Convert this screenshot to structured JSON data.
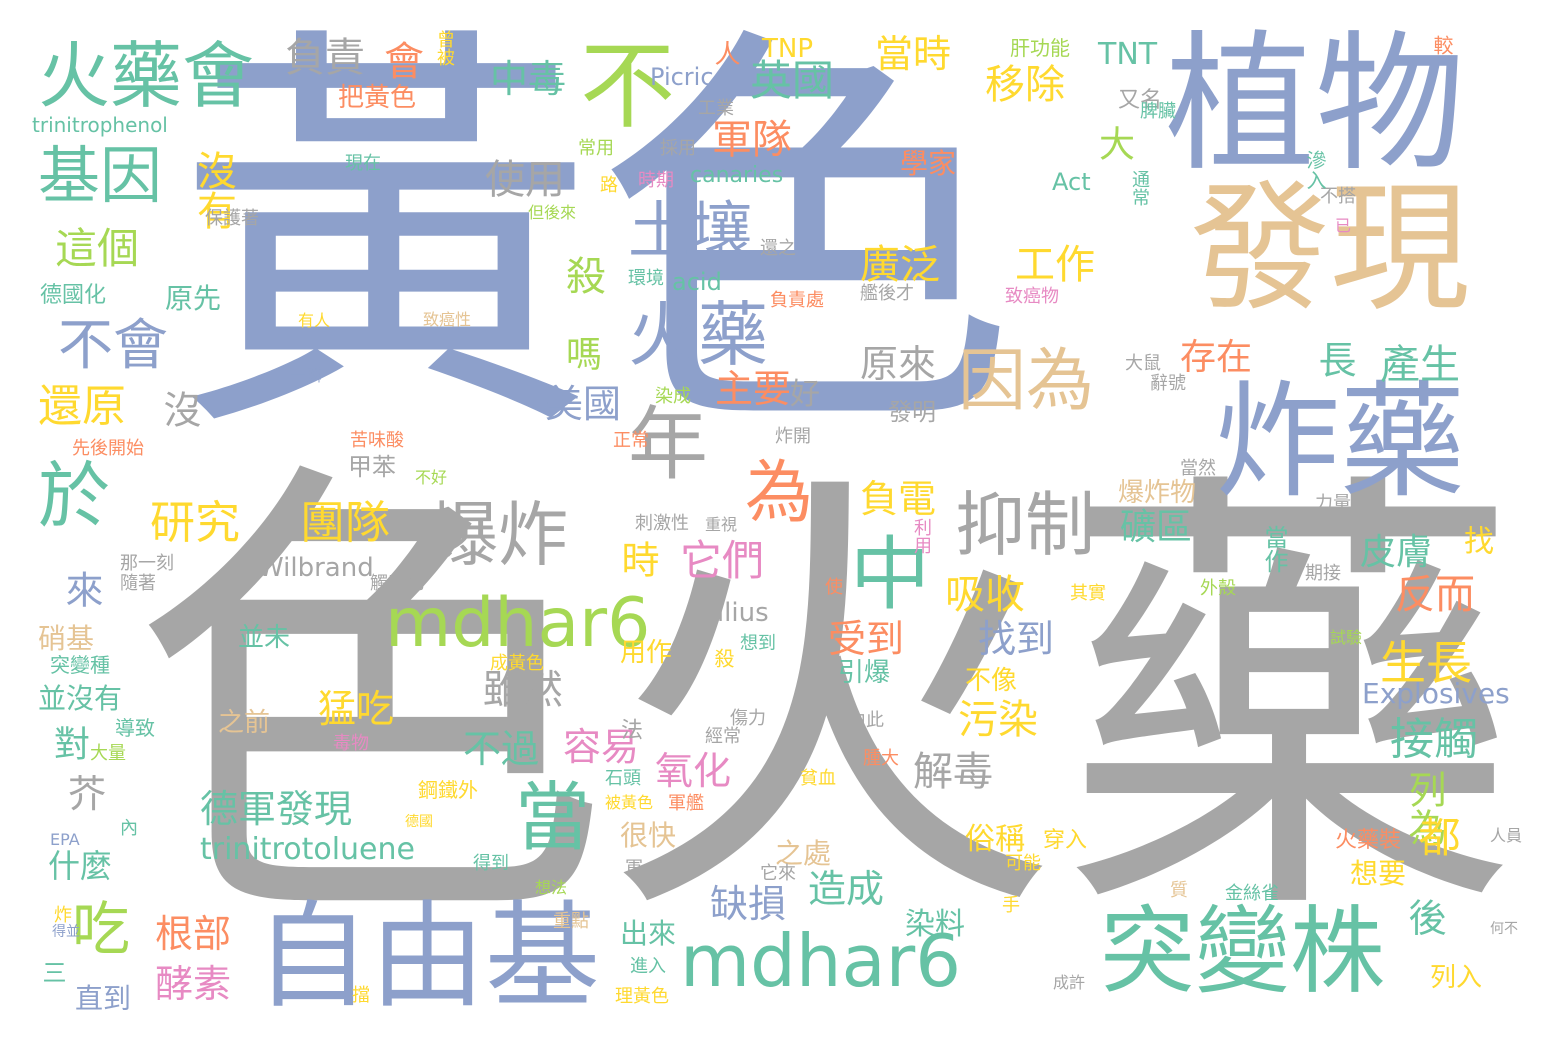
{
  "palette": {
    "blue": "#8da0cb",
    "grey": "#a6a6a6",
    "teal": "#66c2a5",
    "tan": "#e5c494",
    "green": "#a6d854",
    "orange": "#fc8d62",
    "yellow": "#ffd92f",
    "pink": "#e78ac3"
  },
  "words": [
    {
      "text": "黃色",
      "c": 0
    },
    {
      "text": "色",
      "c": 1
    },
    {
      "text": "火藥",
      "c": 1
    },
    {
      "text": "植物",
      "c": 0
    },
    {
      "text": "發現",
      "c": 3
    },
    {
      "text": "炸藥",
      "c": 0
    },
    {
      "text": "自由基",
      "c": 0
    },
    {
      "text": "突變株",
      "c": 2
    },
    {
      "text": "mdhar6",
      "c": 2
    },
    {
      "text": "mdhar6",
      "c": 4
    },
    {
      "text": "火藥會",
      "c": 2
    },
    {
      "text": "不",
      "c": 4
    },
    {
      "text": "基因",
      "c": 2
    },
    {
      "text": "土壤",
      "c": 0
    },
    {
      "text": "火藥",
      "c": 0
    },
    {
      "text": "年",
      "c": 1
    },
    {
      "text": "因為",
      "c": 3
    },
    {
      "text": "爆炸",
      "c": 1
    },
    {
      "text": "抑制",
      "c": 1
    },
    {
      "text": "中",
      "c": 2
    },
    {
      "text": "當",
      "c": 2
    },
    {
      "text": "於",
      "c": 2
    },
    {
      "text": "不會",
      "c": 0
    },
    {
      "text": "吃",
      "c": 4
    },
    {
      "text": "為",
      "c": 5
    },
    {
      "text": "研究",
      "c": 6
    },
    {
      "text": "團隊",
      "c": 6
    },
    {
      "text": "負責",
      "c": 1
    },
    {
      "text": "會",
      "c": 5
    },
    {
      "text": "中毒",
      "c": 2
    },
    {
      "text": "英國",
      "c": 2
    },
    {
      "text": "移除",
      "c": 6
    },
    {
      "text": "當時",
      "c": 6
    },
    {
      "text": "TNT",
      "c": 2
    },
    {
      "text": "TNP",
      "c": 6
    },
    {
      "text": "人",
      "c": 5
    },
    {
      "text": "肝功能",
      "c": 4
    },
    {
      "text": "較",
      "c": 5
    },
    {
      "text": "曾被",
      "c": 6
    },
    {
      "text": "軍隊",
      "c": 5
    },
    {
      "text": "使用",
      "c": 1
    },
    {
      "text": "這個",
      "c": 4
    },
    {
      "text": "沒有",
      "c": 6
    },
    {
      "text": "廣泛",
      "c": 6
    },
    {
      "text": "工作",
      "c": 6
    },
    {
      "text": "殺",
      "c": 4
    },
    {
      "text": "嗎",
      "c": 4
    },
    {
      "text": "大",
      "c": 4
    },
    {
      "text": "長",
      "c": 2
    },
    {
      "text": "產生",
      "c": 2
    },
    {
      "text": "存在",
      "c": 5
    },
    {
      "text": "還原",
      "c": 6
    },
    {
      "text": "沒",
      "c": 1
    },
    {
      "text": "美國",
      "c": 0
    },
    {
      "text": "主要",
      "c": 5
    },
    {
      "text": "原來",
      "c": 1
    },
    {
      "text": "好",
      "c": 1
    },
    {
      "text": "原先",
      "c": 2
    },
    {
      "text": "德國化",
      "c": 2
    },
    {
      "text": "甲苯",
      "c": 1
    },
    {
      "text": "負電",
      "c": 6
    },
    {
      "text": "爆炸物",
      "c": 3
    },
    {
      "text": "礦區",
      "c": 2
    },
    {
      "text": "皮膚",
      "c": 2
    },
    {
      "text": "找",
      "c": 6
    },
    {
      "text": "當作",
      "c": 2
    },
    {
      "text": "它們",
      "c": 7
    },
    {
      "text": "時",
      "c": 6
    },
    {
      "text": "來",
      "c": 0
    },
    {
      "text": "吸收",
      "c": 6
    },
    {
      "text": "反而",
      "c": 5
    },
    {
      "text": "受到",
      "c": 5
    },
    {
      "text": "找到",
      "c": 0
    },
    {
      "text": "生長",
      "c": 6
    },
    {
      "text": "雖然",
      "c": 1
    },
    {
      "text": "猛吃",
      "c": 6
    },
    {
      "text": "污染",
      "c": 6
    },
    {
      "text": "接觸",
      "c": 2
    },
    {
      "text": "容易",
      "c": 7
    },
    {
      "text": "不過",
      "c": 2
    },
    {
      "text": "氧化",
      "c": 7
    },
    {
      "text": "解毒",
      "c": 1
    },
    {
      "text": "列為",
      "c": 4
    },
    {
      "text": "對",
      "c": 2
    },
    {
      "text": "芥",
      "c": 1
    },
    {
      "text": "德軍發現",
      "c": 2
    },
    {
      "text": "都",
      "c": 6
    },
    {
      "text": "trinitrotoluene",
      "c": 2
    },
    {
      "text": "什麼",
      "c": 2
    },
    {
      "text": "後",
      "c": 2
    },
    {
      "text": "造成",
      "c": 2
    },
    {
      "text": "缺損",
      "c": 0
    },
    {
      "text": "根部",
      "c": 5
    },
    {
      "text": "酵素",
      "c": 7
    },
    {
      "text": "Explosives",
      "c": 0
    },
    {
      "text": "Wilbrand",
      "c": 1
    },
    {
      "text": "Julius",
      "c": 1
    },
    {
      "text": "並沒有",
      "c": 2
    },
    {
      "text": "硝基",
      "c": 3
    },
    {
      "text": "很快",
      "c": 3
    },
    {
      "text": "之處",
      "c": 3
    },
    {
      "text": "俗稱",
      "c": 6
    },
    {
      "text": "染料",
      "c": 2
    },
    {
      "text": "出來",
      "c": 2
    },
    {
      "text": "直到",
      "c": 0
    },
    {
      "text": "想要",
      "c": 6
    },
    {
      "text": "列入",
      "c": 6
    },
    {
      "text": "引爆",
      "c": 2
    },
    {
      "text": "不像",
      "c": 6
    },
    {
      "text": "之前",
      "c": 3
    },
    {
      "text": "用作",
      "c": 6
    },
    {
      "text": "並未",
      "c": 2
    },
    {
      "text": "Picric",
      "c": 0
    },
    {
      "text": "acid",
      "c": 2
    },
    {
      "text": "Act",
      "c": 2
    },
    {
      "text": "canaries",
      "c": 2
    },
    {
      "text": "trinitrophenol",
      "c": 2
    },
    {
      "text": "學家",
      "c": 5
    },
    {
      "text": "又名",
      "c": 1
    },
    {
      "text": "把黃色",
      "c": 5
    },
    {
      "text": "火藥裝",
      "c": 5
    },
    {
      "text": "發明",
      "c": 1
    },
    {
      "text": "三",
      "c": 2
    },
    {
      "text": "法",
      "c": 1
    },
    {
      "text": "穿入",
      "c": 6
    },
    {
      "text": "可能",
      "c": 6
    },
    {
      "text": "工業",
      "c": 1
    },
    {
      "text": "常用",
      "c": 4
    },
    {
      "text": "採用",
      "c": 1
    },
    {
      "text": "現在",
      "c": 2
    },
    {
      "text": "路",
      "c": 6
    },
    {
      "text": "時期",
      "c": 7
    },
    {
      "text": "保護著",
      "c": 1
    },
    {
      "text": "但後來",
      "c": 4
    },
    {
      "text": "環境",
      "c": 2
    },
    {
      "text": "負責處",
      "c": 5
    },
    {
      "text": "還之",
      "c": 1
    },
    {
      "text": "艦後才",
      "c": 1
    },
    {
      "text": "有人",
      "c": 6
    },
    {
      "text": "致癌性",
      "c": 3
    },
    {
      "text": "致癌物",
      "c": 7
    },
    {
      "text": "一瞬",
      "c": 0
    },
    {
      "text": "苦味酸",
      "c": 5
    },
    {
      "text": "染成",
      "c": 4
    },
    {
      "text": "正常",
      "c": 5
    },
    {
      "text": "先後開始",
      "c": 5
    },
    {
      "text": "不好",
      "c": 4
    },
    {
      "text": "刺激性",
      "c": 1
    },
    {
      "text": "重視",
      "c": 1
    },
    {
      "text": "利用",
      "c": 7
    },
    {
      "text": "那一刻",
      "c": 1
    },
    {
      "text": "隨著",
      "c": 1
    },
    {
      "text": "使",
      "c": 5
    },
    {
      "text": "其實",
      "c": 6
    },
    {
      "text": "外殼",
      "c": 4
    },
    {
      "text": "期接",
      "c": 1
    },
    {
      "text": "力量",
      "c": 1
    },
    {
      "text": "當然",
      "c": 1
    },
    {
      "text": "突變種",
      "c": 2
    },
    {
      "text": "導致",
      "c": 2
    },
    {
      "text": "大量",
      "c": 4
    },
    {
      "text": "毒物",
      "c": 7
    },
    {
      "text": "傷力",
      "c": 1
    },
    {
      "text": "經常",
      "c": 1
    },
    {
      "text": "由此",
      "c": 1
    },
    {
      "text": "腫大",
      "c": 5
    },
    {
      "text": "貧血",
      "c": 6
    },
    {
      "text": "內",
      "c": 2
    },
    {
      "text": "EPA",
      "c": 0
    },
    {
      "text": "鋼鐵外",
      "c": 6
    },
    {
      "text": "德國",
      "c": 6
    },
    {
      "text": "得到",
      "c": 2
    },
    {
      "text": "軍",
      "c": 1
    },
    {
      "text": "想法",
      "c": 4
    },
    {
      "text": "重點",
      "c": 3
    },
    {
      "text": "它來",
      "c": 1
    },
    {
      "text": "手",
      "c": 6
    },
    {
      "text": "金絲雀",
      "c": 2
    },
    {
      "text": "何不",
      "c": 1
    },
    {
      "text": "進入",
      "c": 2
    },
    {
      "text": "理黃色",
      "c": 6
    },
    {
      "text": "成許",
      "c": 1
    },
    {
      "text": "擋",
      "c": 6
    },
    {
      "text": "炸",
      "c": 6
    },
    {
      "text": "得並",
      "c": 0
    },
    {
      "text": "成黃色",
      "c": 6
    },
    {
      "text": "想到",
      "c": 2
    },
    {
      "text": "試驗",
      "c": 4
    },
    {
      "text": "殺",
      "c": 6
    },
    {
      "text": "石頭",
      "c": 2
    },
    {
      "text": "被黃色",
      "c": 6
    },
    {
      "text": "軍艦",
      "c": 5
    },
    {
      "text": "人員",
      "c": 1
    },
    {
      "text": "質",
      "c": 3
    },
    {
      "text": "已",
      "c": 7
    },
    {
      "text": "不搭",
      "c": 1
    },
    {
      "text": "滲入",
      "c": 2
    },
    {
      "text": "通常",
      "c": 2
    },
    {
      "text": "大鼠",
      "c": 1
    },
    {
      "text": "辭號",
      "c": 1
    },
    {
      "text": "炸開",
      "c": 1
    },
    {
      "text": "脾臟",
      "c": 2
    },
    {
      "text": "觸黃色",
      "c": 1
    }
  ]
}
